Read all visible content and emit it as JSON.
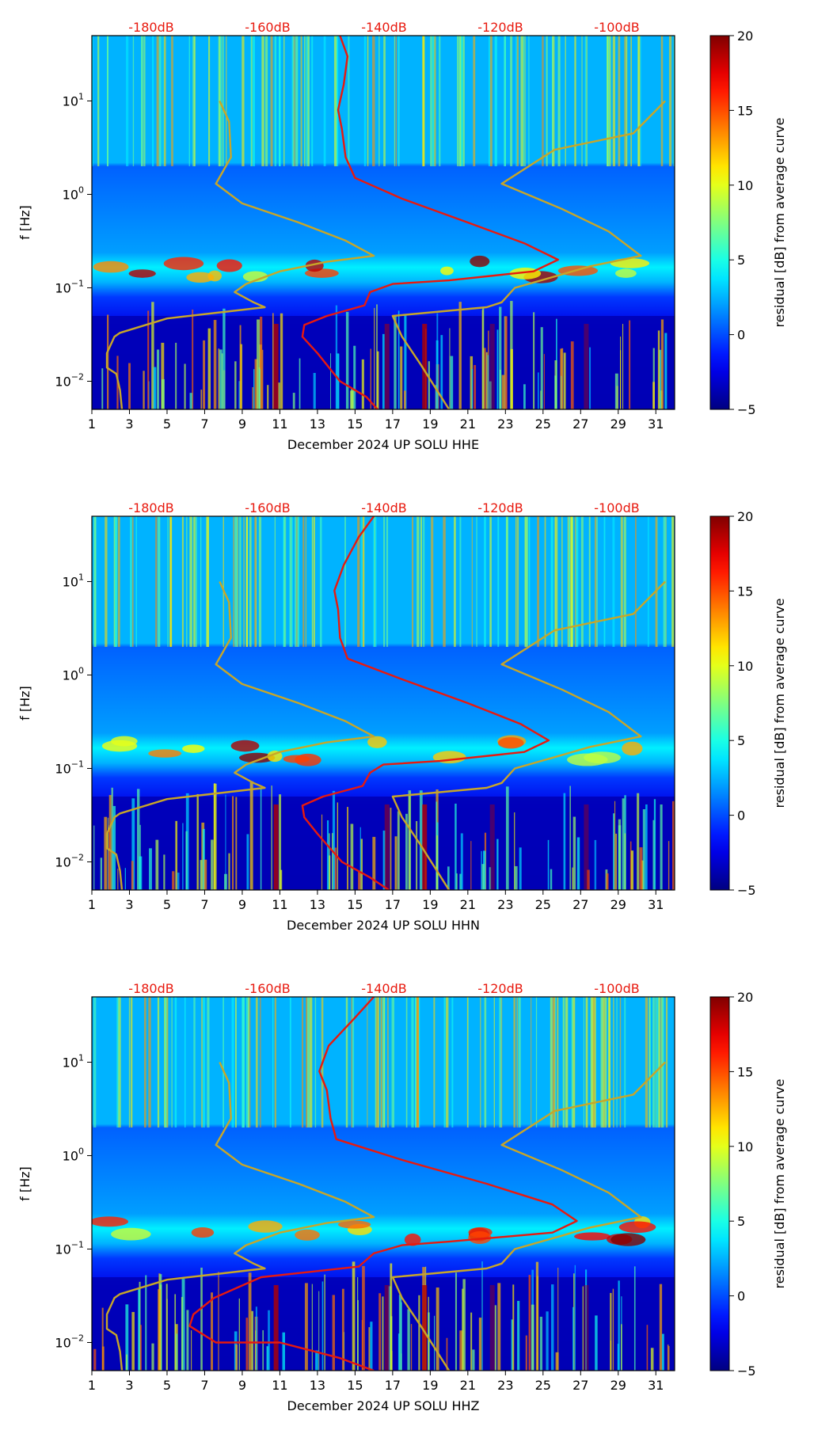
{
  "colors": {
    "red_curve": "#e8190e",
    "gold_curve": "#c8a628",
    "db_label": "#e8190e",
    "background": "#ffffff"
  },
  "colormap": "jet",
  "chart_data": [
    {
      "type": "heatmap",
      "xlabel": "December 2024 UP SOLU  HHE",
      "ylabel": "f [Hz]",
      "x_ticks": [
        "1",
        "3",
        "5",
        "7",
        "9",
        "11",
        "13",
        "15",
        "17",
        "19",
        "21",
        "23",
        "25",
        "27",
        "29",
        "31"
      ],
      "xlim": [
        1,
        32
      ],
      "y_ticks": [
        {
          "base": "10",
          "exp": "1"
        },
        {
          "base": "10",
          "exp": "0"
        },
        {
          "base": "10",
          "exp": "−1"
        },
        {
          "base": "10",
          "exp": "−2"
        }
      ],
      "y_scale": "log",
      "ylim": [
        0.005,
        50
      ],
      "top_ticks": [
        "-180dB",
        "-160dB",
        "-140dB",
        "-120dB",
        "-100dB"
      ],
      "colorbar": {
        "label": "residual [dB] from average curve",
        "ticks": [
          "20",
          "15",
          "10",
          "5",
          "0",
          "−5"
        ],
        "range": [
          -5,
          20
        ]
      },
      "series": [
        {
          "color": "#e8190e",
          "points": [
            [
              14.2,
              50
            ],
            [
              14.6,
              30
            ],
            [
              14.4,
              15
            ],
            [
              14.1,
              8
            ],
            [
              14.3,
              5
            ],
            [
              14.5,
              2.5
            ],
            [
              15,
              1.5
            ],
            [
              17.5,
              0.9
            ],
            [
              21,
              0.5
            ],
            [
              24,
              0.3
            ],
            [
              25.8,
              0.2
            ],
            [
              24.5,
              0.15
            ],
            [
              20,
              0.12
            ],
            [
              17,
              0.11
            ],
            [
              15.8,
              0.09
            ],
            [
              15.5,
              0.065
            ],
            [
              13.5,
              0.05
            ],
            [
              12.3,
              0.04
            ],
            [
              12.2,
              0.03
            ],
            [
              13,
              0.02
            ],
            [
              14.2,
              0.01
            ],
            [
              15.6,
              0.0068
            ],
            [
              16.2,
              0.005
            ]
          ]
        },
        {
          "color": "#c8a628",
          "points": [
            [
              7.8,
              10
            ],
            [
              8.3,
              6
            ],
            [
              8.4,
              2.5
            ],
            [
              7.6,
              1.3
            ],
            [
              9,
              0.8
            ],
            [
              12,
              0.5
            ],
            [
              14.5,
              0.32
            ],
            [
              16,
              0.22
            ],
            [
              13.5,
              0.19
            ],
            [
              11,
              0.15
            ],
            [
              9.2,
              0.11
            ],
            [
              8.6,
              0.09
            ],
            [
              9.6,
              0.07
            ],
            [
              10.2,
              0.062
            ],
            [
              5,
              0.047
            ],
            [
              2.5,
              0.033
            ],
            [
              2.2,
              0.03
            ],
            [
              1.8,
              0.02
            ],
            [
              1.8,
              0.014
            ],
            [
              2.3,
              0.012
            ],
            [
              2.5,
              0.008
            ],
            [
              2.6,
              0.005
            ]
          ]
        },
        {
          "color": "#c8a628",
          "points": [
            [
              31.5,
              10
            ],
            [
              29.8,
              4.5
            ],
            [
              25.6,
              3.0
            ],
            [
              22.8,
              1.3
            ],
            [
              26,
              0.7
            ],
            [
              28.5,
              0.4
            ],
            [
              30.2,
              0.22
            ],
            [
              27.5,
              0.17
            ],
            [
              25.5,
              0.13
            ],
            [
              23.5,
              0.1
            ],
            [
              22.8,
              0.07
            ],
            [
              22,
              0.062
            ],
            [
              17,
              0.05
            ],
            [
              17.5,
              0.03
            ],
            [
              18.5,
              0.015
            ],
            [
              20,
              0.005
            ]
          ]
        }
      ]
    },
    {
      "type": "heatmap",
      "xlabel": "December 2024 UP SOLU  HHN",
      "ylabel": "f [Hz]",
      "x_ticks": [
        "1",
        "3",
        "5",
        "7",
        "9",
        "11",
        "13",
        "15",
        "17",
        "19",
        "21",
        "23",
        "25",
        "27",
        "29",
        "31"
      ],
      "xlim": [
        1,
        32
      ],
      "y_ticks": [
        {
          "base": "10",
          "exp": "1"
        },
        {
          "base": "10",
          "exp": "0"
        },
        {
          "base": "10",
          "exp": "−1"
        },
        {
          "base": "10",
          "exp": "−2"
        }
      ],
      "y_scale": "log",
      "ylim": [
        0.005,
        50
      ],
      "top_ticks": [
        "-180dB",
        "-160dB",
        "-140dB",
        "-120dB",
        "-100dB"
      ],
      "colorbar": {
        "label": "residual [dB] from average curve",
        "ticks": [
          "20",
          "15",
          "10",
          "5",
          "0",
          "−5"
        ],
        "range": [
          -5,
          20
        ]
      },
      "series": [
        {
          "color": "#e8190e",
          "points": [
            [
              16,
              50
            ],
            [
              15.2,
              30
            ],
            [
              14.4,
              15
            ],
            [
              13.9,
              8
            ],
            [
              14.1,
              5
            ],
            [
              14.2,
              2.5
            ],
            [
              14.6,
              1.5
            ],
            [
              17.5,
              0.9
            ],
            [
              21,
              0.5
            ],
            [
              23.8,
              0.3
            ],
            [
              25.3,
              0.2
            ],
            [
              24,
              0.15
            ],
            [
              19.5,
              0.12
            ],
            [
              16.5,
              0.11
            ],
            [
              15.8,
              0.09
            ],
            [
              15.4,
              0.065
            ],
            [
              13.3,
              0.05
            ],
            [
              12.2,
              0.04
            ],
            [
              12.3,
              0.03
            ],
            [
              13,
              0.02
            ],
            [
              14.3,
              0.01
            ],
            [
              15.8,
              0.0068
            ],
            [
              16.8,
              0.005
            ]
          ]
        },
        {
          "color": "#c8a628",
          "points": [
            [
              7.8,
              10
            ],
            [
              8.3,
              6
            ],
            [
              8.4,
              2.5
            ],
            [
              7.6,
              1.3
            ],
            [
              9,
              0.8
            ],
            [
              12,
              0.5
            ],
            [
              14.5,
              0.32
            ],
            [
              16,
              0.22
            ],
            [
              13.5,
              0.19
            ],
            [
              11,
              0.15
            ],
            [
              9.2,
              0.11
            ],
            [
              8.6,
              0.09
            ],
            [
              9.6,
              0.07
            ],
            [
              10.2,
              0.062
            ],
            [
              5,
              0.047
            ],
            [
              2.5,
              0.033
            ],
            [
              2.2,
              0.03
            ],
            [
              1.8,
              0.02
            ],
            [
              1.8,
              0.014
            ],
            [
              2.3,
              0.012
            ],
            [
              2.5,
              0.008
            ],
            [
              2.6,
              0.005
            ]
          ]
        },
        {
          "color": "#c8a628",
          "points": [
            [
              31.5,
              10
            ],
            [
              29.8,
              4.5
            ],
            [
              25.6,
              3.0
            ],
            [
              22.8,
              1.3
            ],
            [
              26,
              0.7
            ],
            [
              28.5,
              0.4
            ],
            [
              30.2,
              0.22
            ],
            [
              27.5,
              0.17
            ],
            [
              25.5,
              0.13
            ],
            [
              23.5,
              0.1
            ],
            [
              22.8,
              0.07
            ],
            [
              22,
              0.062
            ],
            [
              17,
              0.05
            ],
            [
              17.5,
              0.03
            ],
            [
              18.5,
              0.015
            ],
            [
              20,
              0.005
            ]
          ]
        }
      ]
    },
    {
      "type": "heatmap",
      "xlabel": "December 2024 UP SOLU  HHZ",
      "ylabel": "f [Hz]",
      "x_ticks": [
        "1",
        "3",
        "5",
        "7",
        "9",
        "11",
        "13",
        "15",
        "17",
        "19",
        "21",
        "23",
        "25",
        "27",
        "29",
        "31"
      ],
      "xlim": [
        1,
        32
      ],
      "y_ticks": [
        {
          "base": "10",
          "exp": "1"
        },
        {
          "base": "10",
          "exp": "0"
        },
        {
          "base": "10",
          "exp": "−1"
        },
        {
          "base": "10",
          "exp": "−2"
        }
      ],
      "y_scale": "log",
      "ylim": [
        0.005,
        50
      ],
      "top_ticks": [
        "-180dB",
        "-160dB",
        "-140dB",
        "-120dB",
        "-100dB"
      ],
      "colorbar": {
        "label": "residual [dB] from average curve",
        "ticks": [
          "20",
          "15",
          "10",
          "5",
          "0",
          "−5"
        ],
        "range": [
          -5,
          20
        ]
      },
      "series": [
        {
          "color": "#e8190e",
          "points": [
            [
              16,
              50
            ],
            [
              15,
              30
            ],
            [
              13.6,
              15
            ],
            [
              13.1,
              8
            ],
            [
              13.5,
              5
            ],
            [
              13.7,
              2.5
            ],
            [
              14,
              1.5
            ],
            [
              17.5,
              0.9
            ],
            [
              22,
              0.5
            ],
            [
              25.5,
              0.3
            ],
            [
              26.8,
              0.2
            ],
            [
              25.5,
              0.15
            ],
            [
              20,
              0.12
            ],
            [
              17.5,
              0.11
            ],
            [
              16,
              0.09
            ],
            [
              15.2,
              0.065
            ],
            [
              10,
              0.05
            ],
            [
              7.5,
              0.03
            ],
            [
              6.4,
              0.02
            ],
            [
              6.2,
              0.015
            ],
            [
              7.6,
              0.01
            ],
            [
              11,
              0.01
            ],
            [
              14.2,
              0.0068
            ],
            [
              16,
              0.005
            ]
          ]
        },
        {
          "color": "#c8a628",
          "points": [
            [
              7.8,
              10
            ],
            [
              8.3,
              6
            ],
            [
              8.4,
              2.5
            ],
            [
              7.6,
              1.3
            ],
            [
              9,
              0.8
            ],
            [
              12,
              0.5
            ],
            [
              14.5,
              0.32
            ],
            [
              16,
              0.22
            ],
            [
              13.5,
              0.19
            ],
            [
              11,
              0.15
            ],
            [
              9.2,
              0.11
            ],
            [
              8.6,
              0.09
            ],
            [
              9.6,
              0.07
            ],
            [
              10.2,
              0.062
            ],
            [
              5,
              0.047
            ],
            [
              2.5,
              0.033
            ],
            [
              2.2,
              0.03
            ],
            [
              1.8,
              0.02
            ],
            [
              1.8,
              0.014
            ],
            [
              2.3,
              0.012
            ],
            [
              2.5,
              0.008
            ],
            [
              2.6,
              0.005
            ]
          ]
        },
        {
          "color": "#c8a628",
          "points": [
            [
              31.5,
              10
            ],
            [
              29.8,
              4.5
            ],
            [
              25.6,
              3.0
            ],
            [
              22.8,
              1.3
            ],
            [
              26,
              0.7
            ],
            [
              28.5,
              0.4
            ],
            [
              30.2,
              0.22
            ],
            [
              27.5,
              0.17
            ],
            [
              25.5,
              0.13
            ],
            [
              23.5,
              0.1
            ],
            [
              22.8,
              0.07
            ],
            [
              22,
              0.062
            ],
            [
              17,
              0.05
            ],
            [
              17.5,
              0.03
            ],
            [
              18.5,
              0.015
            ],
            [
              20,
              0.005
            ]
          ]
        }
      ]
    }
  ]
}
